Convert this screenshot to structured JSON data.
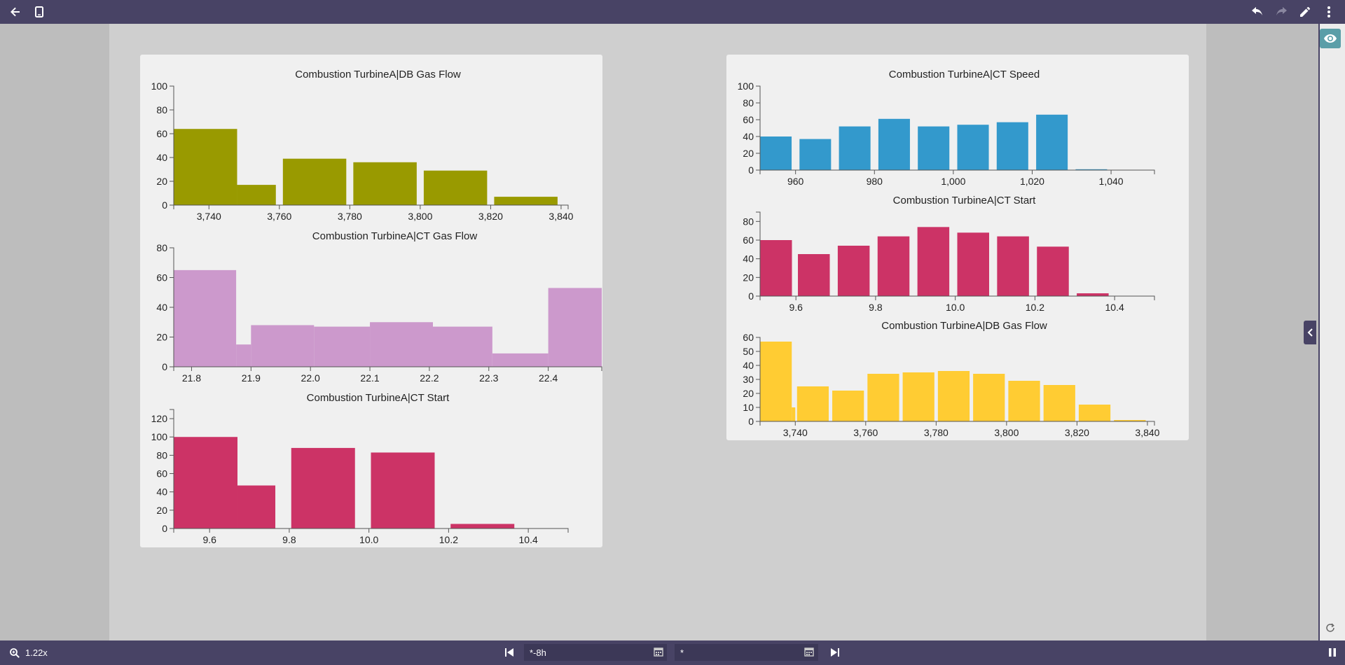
{
  "toolbar": {
    "back_icon": "arrow-left-icon",
    "device_icon": "mobile-device-icon",
    "undo_icon": "undo-icon",
    "redo_icon": "redo-icon",
    "edit_icon": "pencil-icon",
    "menu_icon": "more-vertical-icon"
  },
  "sidebar": {
    "eye_icon": "eye-icon",
    "refresh_icon": "refresh-icon",
    "collapse_icon": "chevron-left-icon"
  },
  "bottom": {
    "zoom_label": "1.22x",
    "start_time": "*-8h",
    "end_time": "*"
  },
  "colors": {
    "topbar": "#484365",
    "olive": "#999a00",
    "lavender": "#cc99cc",
    "crimson": "#cc3366",
    "blue": "#3399cc",
    "yellow": "#ffcc33"
  },
  "chart_data": [
    {
      "id": "l1",
      "type": "bar",
      "subtype": "histogram",
      "title": "Combustion TurbineA|DB Gas Flow",
      "color": "#999a00",
      "xlim": [
        3730,
        3842
      ],
      "ylim": [
        0,
        100
      ],
      "xticks": [
        3740,
        3760,
        3780,
        3800,
        3820,
        3840
      ],
      "xtick_labels": [
        "3,740",
        "3,760",
        "3,780",
        "3,800",
        "3,820",
        "3,840"
      ],
      "yticks": [
        0,
        20,
        40,
        60,
        80,
        100
      ],
      "ytick_labels": [
        "0",
        "20",
        "40",
        "60",
        "80",
        "100"
      ],
      "bins": [
        {
          "x0": 3730,
          "x1": 3748,
          "value": 64
        },
        {
          "x0": 3748,
          "x1": 3759,
          "value": 17
        },
        {
          "x0": 3761,
          "x1": 3779,
          "value": 39
        },
        {
          "x0": 3781,
          "x1": 3799,
          "value": 36
        },
        {
          "x0": 3801,
          "x1": 3819,
          "value": 29
        },
        {
          "x0": 3821,
          "x1": 3839,
          "value": 7
        }
      ]
    },
    {
      "id": "l2",
      "type": "bar",
      "subtype": "histogram",
      "title": "Combustion TurbineA|CT Gas Flow",
      "color": "#cc99cc",
      "xlim": [
        21.77,
        22.49
      ],
      "ylim": [
        0,
        80
      ],
      "xticks": [
        21.8,
        21.9,
        22.0,
        22.1,
        22.2,
        22.3,
        22.4
      ],
      "xtick_labels": [
        "21.8",
        "21.9",
        "22.0",
        "22.1",
        "22.2",
        "22.3",
        "22.4"
      ],
      "yticks": [
        0,
        20,
        40,
        60,
        80
      ],
      "ytick_labels": [
        "0",
        "20",
        "40",
        "60",
        "80"
      ],
      "bins": [
        {
          "x0": 21.77,
          "x1": 21.875,
          "value": 65
        },
        {
          "x0": 21.875,
          "x1": 21.9,
          "value": 15
        },
        {
          "x0": 21.9,
          "x1": 22.006,
          "value": 28
        },
        {
          "x0": 22.006,
          "x1": 22.1,
          "value": 27
        },
        {
          "x0": 22.1,
          "x1": 22.206,
          "value": 30
        },
        {
          "x0": 22.206,
          "x1": 22.306,
          "value": 27
        },
        {
          "x0": 22.306,
          "x1": 22.4,
          "value": 9
        },
        {
          "x0": 22.4,
          "x1": 22.49,
          "value": 53
        }
      ]
    },
    {
      "id": "l3",
      "type": "bar",
      "subtype": "histogram",
      "title": "Combustion TurbineA|CT Start",
      "color": "#cc3366",
      "xlim": [
        9.51,
        10.5
      ],
      "ylim": [
        0,
        130
      ],
      "xticks": [
        9.6,
        9.8,
        10.0,
        10.2,
        10.4
      ],
      "xtick_labels": [
        "9.6",
        "9.8",
        "10.0",
        "10.2",
        "10.4"
      ],
      "yticks": [
        0,
        20,
        40,
        60,
        80,
        100,
        120
      ],
      "ytick_labels": [
        "0",
        "20",
        "40",
        "60",
        "80",
        "100",
        "120"
      ],
      "bins": [
        {
          "x0": 9.51,
          "x1": 9.67,
          "value": 100
        },
        {
          "x0": 9.67,
          "x1": 9.765,
          "value": 47
        },
        {
          "x0": 9.805,
          "x1": 9.965,
          "value": 88
        },
        {
          "x0": 10.005,
          "x1": 10.165,
          "value": 83
        },
        {
          "x0": 10.205,
          "x1": 10.365,
          "value": 5
        }
      ]
    },
    {
      "id": "r1",
      "type": "bar",
      "subtype": "histogram",
      "title": "Combustion TurbineA|CT Speed",
      "color": "#3399cc",
      "xlim": [
        951,
        1051
      ],
      "ylim": [
        0,
        100
      ],
      "xticks": [
        960,
        980,
        1000,
        1020,
        1040
      ],
      "xtick_labels": [
        "960",
        "980",
        "1,000",
        "1,020",
        "1,040"
      ],
      "yticks": [
        0,
        20,
        40,
        60,
        80,
        100
      ],
      "ytick_labels": [
        "0",
        "20",
        "40",
        "60",
        "80",
        "100"
      ],
      "bins": [
        {
          "x0": 951,
          "x1": 959,
          "value": 40
        },
        {
          "x0": 961,
          "x1": 969,
          "value": 37
        },
        {
          "x0": 971,
          "x1": 979,
          "value": 52
        },
        {
          "x0": 981,
          "x1": 989,
          "value": 61
        },
        {
          "x0": 991,
          "x1": 999,
          "value": 52
        },
        {
          "x0": 1001,
          "x1": 1009,
          "value": 54
        },
        {
          "x0": 1011,
          "x1": 1019,
          "value": 57
        },
        {
          "x0": 1021,
          "x1": 1029,
          "value": 66
        },
        {
          "x0": 1031,
          "x1": 1039,
          "value": 1
        }
      ]
    },
    {
      "id": "r2",
      "type": "bar",
      "subtype": "histogram",
      "title": "Combustion TurbineA|CT Start",
      "color": "#cc3366",
      "xlim": [
        9.51,
        10.5
      ],
      "ylim": [
        0,
        90
      ],
      "xticks": [
        9.6,
        9.8,
        10.0,
        10.2,
        10.4
      ],
      "xtick_labels": [
        "9.6",
        "9.8",
        "10.0",
        "10.2",
        "10.4"
      ],
      "yticks": [
        0,
        20,
        40,
        60,
        80
      ],
      "ytick_labels": [
        "0",
        "20",
        "40",
        "60",
        "80"
      ],
      "bins": [
        {
          "x0": 9.51,
          "x1": 9.59,
          "value": 60
        },
        {
          "x0": 9.605,
          "x1": 9.685,
          "value": 45
        },
        {
          "x0": 9.705,
          "x1": 9.785,
          "value": 54
        },
        {
          "x0": 9.805,
          "x1": 9.885,
          "value": 64
        },
        {
          "x0": 9.905,
          "x1": 9.985,
          "value": 74
        },
        {
          "x0": 10.005,
          "x1": 10.085,
          "value": 68
        },
        {
          "x0": 10.105,
          "x1": 10.185,
          "value": 64
        },
        {
          "x0": 10.205,
          "x1": 10.285,
          "value": 53
        },
        {
          "x0": 10.305,
          "x1": 10.385,
          "value": 3
        }
      ]
    },
    {
      "id": "r3",
      "type": "bar",
      "subtype": "histogram",
      "title": "Combustion TurbineA|DB Gas Flow",
      "color": "#ffcc33",
      "xlim": [
        3730,
        3842
      ],
      "ylim": [
        0,
        60
      ],
      "xticks": [
        3740,
        3760,
        3780,
        3800,
        3820,
        3840
      ],
      "xtick_labels": [
        "3,740",
        "3,760",
        "3,780",
        "3,800",
        "3,820",
        "3,840"
      ],
      "yticks": [
        0,
        10,
        20,
        30,
        40,
        50,
        60
      ],
      "ytick_labels": [
        "0",
        "10",
        "20",
        "30",
        "40",
        "50",
        "60"
      ],
      "bins": [
        {
          "x0": 3730,
          "x1": 3739,
          "value": 57
        },
        {
          "x0": 3739,
          "x1": 3740,
          "value": 10
        },
        {
          "x0": 3740.5,
          "x1": 3749.5,
          "value": 25
        },
        {
          "x0": 3750.5,
          "x1": 3759.5,
          "value": 22
        },
        {
          "x0": 3760.5,
          "x1": 3769.5,
          "value": 34
        },
        {
          "x0": 3770.5,
          "x1": 3779.5,
          "value": 35
        },
        {
          "x0": 3780.5,
          "x1": 3789.5,
          "value": 36
        },
        {
          "x0": 3790.5,
          "x1": 3799.5,
          "value": 34
        },
        {
          "x0": 3800.5,
          "x1": 3809.5,
          "value": 29
        },
        {
          "x0": 3810.5,
          "x1": 3819.5,
          "value": 26
        },
        {
          "x0": 3820.5,
          "x1": 3829.5,
          "value": 12
        },
        {
          "x0": 3830.5,
          "x1": 3839.5,
          "value": 1
        }
      ]
    }
  ]
}
